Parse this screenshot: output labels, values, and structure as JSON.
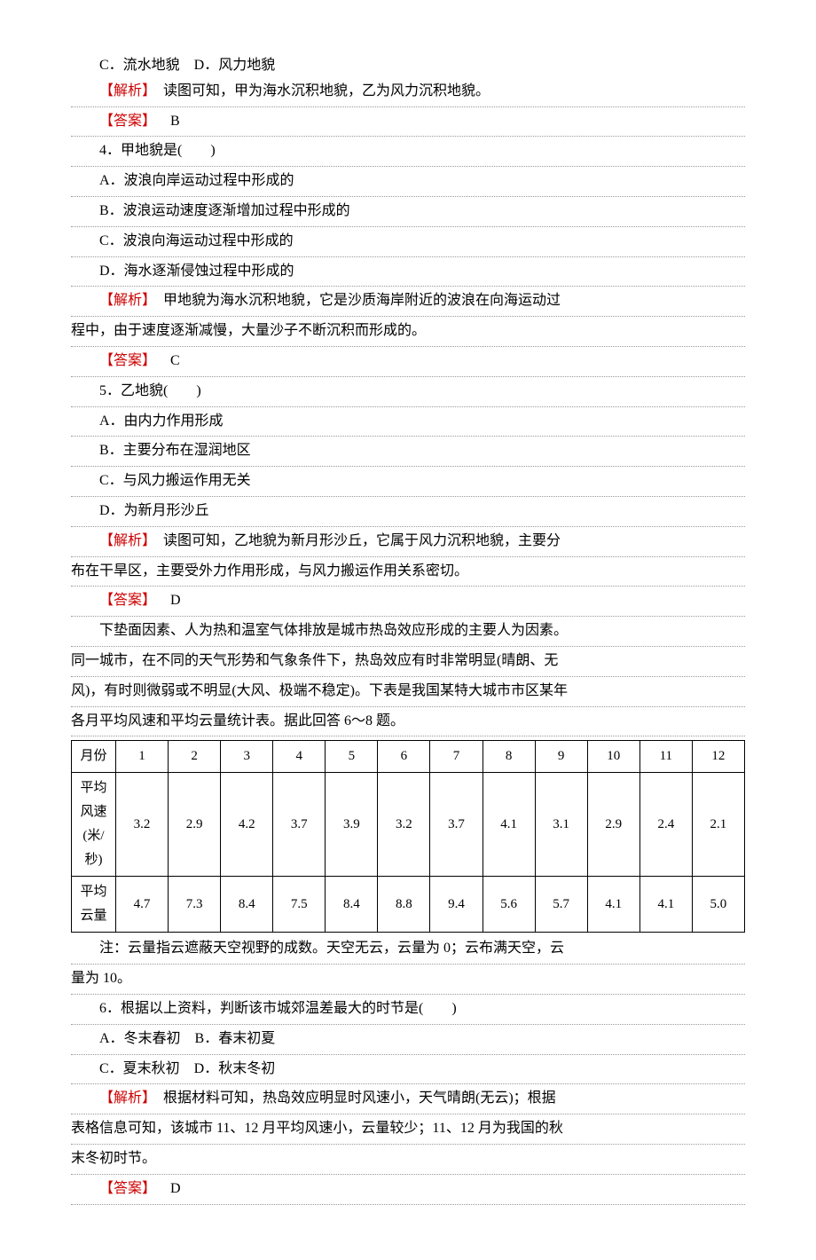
{
  "line1": "C．流水地貌　D．风力地貌",
  "analysis1_label": "【解析】",
  "analysis1_text": "　读图可知，甲为海水沉积地貌，乙为风力沉积地貌。",
  "answer1_label": "【答案】",
  "answer1_text": "　B",
  "q4_stem": "4．甲地貌是(　　)",
  "q4_a": "A．波浪向岸运动过程中形成的",
  "q4_b": "B．波浪运动速度逐渐增加过程中形成的",
  "q4_c": "C．波浪向海运动过程中形成的",
  "q4_d": "D．海水逐渐侵蚀过程中形成的",
  "analysis4_label": "【解析】",
  "analysis4_text": "　甲地貌为海水沉积地貌，它是沙质海岸附近的波浪在向海运动过",
  "analysis4_cont": "程中，由于速度逐渐减慢，大量沙子不断沉积而形成的。",
  "answer4_label": "【答案】",
  "answer4_text": "　C",
  "q5_stem": "5．乙地貌(　　)",
  "q5_a": "A．由内力作用形成",
  "q5_b": "B．主要分布在湿润地区",
  "q5_c": "C．与风力搬运作用无关",
  "q5_d": "D．为新月形沙丘",
  "analysis5_label": "【解析】",
  "analysis5_text": "　读图可知，乙地貌为新月形沙丘，它属于风力沉积地貌，主要分",
  "analysis5_cont": "布在干旱区，主要受外力作用形成，与风力搬运作用关系密切。",
  "answer5_label": "【答案】",
  "answer5_text": "　D",
  "passage_p1": "下垫面因素、人为热和温室气体排放是城市热岛效应形成的主要人为因素。",
  "passage_p2": "同一城市，在不同的天气形势和气象条件下，热岛效应有时非常明显(晴朗、无",
  "passage_p3": "风)，有时则微弱或不明显(大风、极端不稳定)。下表是我国某特大城市市区某年",
  "passage_p4": "各月平均风速和平均云量统计表。据此回答 6～8 题。",
  "table": {
    "header_label": "月份",
    "months": [
      "1",
      "2",
      "3",
      "4",
      "5",
      "6",
      "7",
      "8",
      "9",
      "10",
      "11",
      "12"
    ],
    "wind_label": "平均风速(米/秒)",
    "wind_values": [
      "3.2",
      "2.9",
      "4.2",
      "3.7",
      "3.9",
      "3.2",
      "3.7",
      "4.1",
      "3.1",
      "2.9",
      "2.4",
      "2.1"
    ],
    "cloud_label": "平均云量",
    "cloud_values": [
      "4.7",
      "7.3",
      "8.4",
      "7.5",
      "8.4",
      "8.8",
      "9.4",
      "5.6",
      "5.7",
      "4.1",
      "4.1",
      "5.0"
    ]
  },
  "note1": "注：云量指云遮蔽天空视野的成数。天空无云，云量为 0；云布满天空，云",
  "note2": "量为 10。",
  "q6_stem": "6．根据以上资料，判断该市城郊温差最大的时节是(　　)",
  "q6_a": "A．冬末春初　B．春末初夏",
  "q6_c": "C．夏末秋初　D．秋末冬初",
  "analysis6_label": "【解析】",
  "analysis6_text": "　根据材料可知，热岛效应明显时风速小，天气晴朗(无云)；根据",
  "analysis6_cont1": "表格信息可知，该城市 11、12 月平均风速小，云量较少；11、12 月为我国的秋",
  "analysis6_cont2": "末冬初时节。",
  "answer6_label": "【答案】",
  "answer6_text": "　D"
}
